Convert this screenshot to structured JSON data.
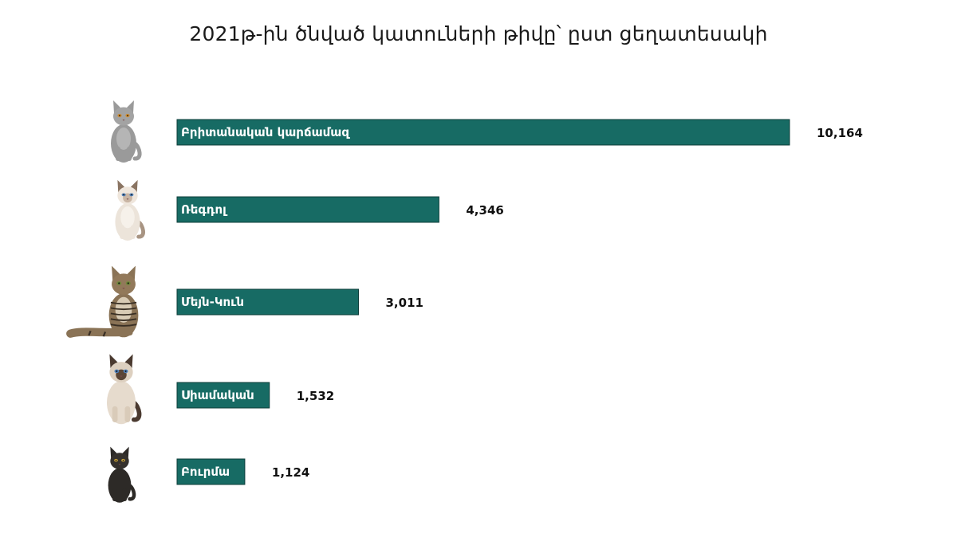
{
  "chart_data": {
    "type": "bar",
    "orientation": "horizontal",
    "title": "2021թ-ին ծնված կատուների թիվը՝ ըստ ցեղատեսակի",
    "categories": [
      "Բրիտանական կարճամազ",
      "Ռեգդոլ",
      "Մեյն-Կուն",
      "Սիամական",
      "Բուրմա"
    ],
    "values": [
      10164,
      4346,
      3011,
      1532,
      1124
    ],
    "value_labels": [
      "10,164",
      "4,346",
      "3,011",
      "1,532",
      "1,124"
    ],
    "xlim": [
      0,
      10164
    ],
    "grid": false,
    "legend": "none",
    "bar_color": "#176b64",
    "icons": [
      "british-shorthair-cat-icon",
      "ragdoll-cat-icon",
      "maine-coon-cat-icon",
      "siamese-cat-icon",
      "burmese-cat-icon"
    ]
  }
}
